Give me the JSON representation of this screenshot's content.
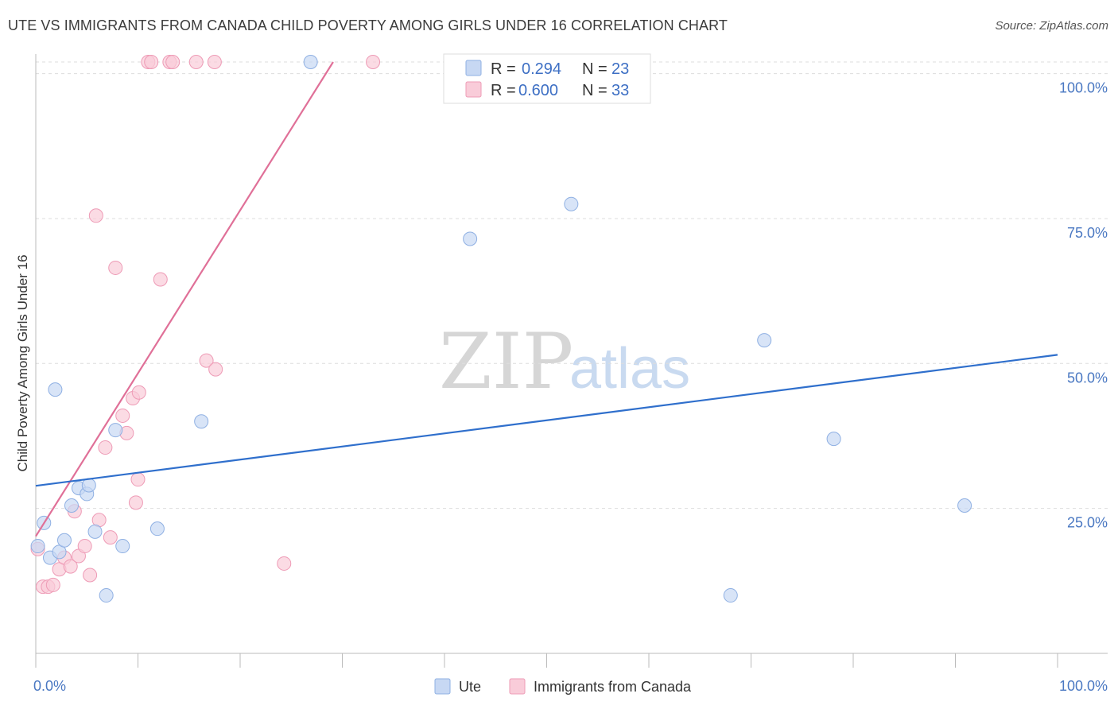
{
  "title": "UTE VS IMMIGRANTS FROM CANADA CHILD POVERTY AMONG GIRLS UNDER 16 CORRELATION CHART",
  "source": "Source: ZipAtlas.com",
  "watermark": {
    "zip": "ZIP",
    "atlas": "atlas"
  },
  "colors": {
    "ute_fill": "#c7d8f3",
    "ute_stroke": "#8fb0e3",
    "ute_line": "#2f6fcc",
    "canada_fill": "#f9ccd9",
    "canada_stroke": "#ee9bb6",
    "canada_line": "#e07098",
    "grid": "#dddddd",
    "axis": "#bbbbbb"
  },
  "legend": {
    "rows": [
      {
        "r_label": "R =",
        "r_value": "0.294",
        "n_label": "N =",
        "n_value": "23"
      },
      {
        "r_label": "R =",
        "r_value": "0.600",
        "n_label": "N =",
        "n_value": "33"
      }
    ]
  },
  "chart_data": {
    "type": "scatter",
    "title": "UTE VS IMMIGRANTS FROM CANADA CHILD POVERTY AMONG GIRLS UNDER 16 CORRELATION CHART",
    "xlabel": "",
    "ylabel": "Child Poverty Among Girls Under 16",
    "xlim": [
      0,
      100
    ],
    "ylim": [
      0,
      102
    ],
    "x_tick_labels": [
      "0.0%",
      "100.0%"
    ],
    "y_ticks": [
      25,
      50,
      75,
      100
    ],
    "y_tick_labels": [
      "25.0%",
      "50.0%",
      "75.0%",
      "100.0%"
    ],
    "grid": true,
    "legend_position": "bottom",
    "series": [
      {
        "name": "Ute",
        "points": [
          {
            "x": 0.2,
            "y": 18.5
          },
          {
            "x": 0.8,
            "y": 22.5
          },
          {
            "x": 1.4,
            "y": 16.5
          },
          {
            "x": 1.9,
            "y": 45.5
          },
          {
            "x": 2.3,
            "y": 17.5
          },
          {
            "x": 2.8,
            "y": 19.5
          },
          {
            "x": 3.5,
            "y": 25.5
          },
          {
            "x": 4.2,
            "y": 28.5
          },
          {
            "x": 5.0,
            "y": 27.5
          },
          {
            "x": 5.2,
            "y": 29.0
          },
          {
            "x": 5.8,
            "y": 21.0
          },
          {
            "x": 6.9,
            "y": 10.0
          },
          {
            "x": 7.8,
            "y": 38.5
          },
          {
            "x": 8.5,
            "y": 18.5
          },
          {
            "x": 11.9,
            "y": 21.5
          },
          {
            "x": 16.2,
            "y": 40.0
          },
          {
            "x": 26.9,
            "y": 102.0
          },
          {
            "x": 42.5,
            "y": 71.5
          },
          {
            "x": 52.4,
            "y": 77.5
          },
          {
            "x": 68.0,
            "y": 10.0
          },
          {
            "x": 71.3,
            "y": 54.0
          },
          {
            "x": 78.1,
            "y": 37.0
          },
          {
            "x": 90.9,
            "y": 25.5
          }
        ],
        "trend": {
          "x": [
            0,
            100
          ],
          "y": [
            28.9,
            51.5
          ]
        }
      },
      {
        "name": "Immigrants from Canada",
        "points": [
          {
            "x": 0.2,
            "y": 18.0
          },
          {
            "x": 0.7,
            "y": 11.5
          },
          {
            "x": 1.2,
            "y": 11.5
          },
          {
            "x": 1.7,
            "y": 11.8
          },
          {
            "x": 2.3,
            "y": 14.5
          },
          {
            "x": 2.8,
            "y": 16.5
          },
          {
            "x": 3.4,
            "y": 15.0
          },
          {
            "x": 3.8,
            "y": 24.5
          },
          {
            "x": 4.2,
            "y": 16.8
          },
          {
            "x": 4.8,
            "y": 18.5
          },
          {
            "x": 5.3,
            "y": 13.5
          },
          {
            "x": 5.9,
            "y": 75.5
          },
          {
            "x": 6.2,
            "y": 23.0
          },
          {
            "x": 6.8,
            "y": 35.5
          },
          {
            "x": 7.3,
            "y": 20.0
          },
          {
            "x": 7.8,
            "y": 66.5
          },
          {
            "x": 8.5,
            "y": 41.0
          },
          {
            "x": 8.9,
            "y": 38.0
          },
          {
            "x": 9.5,
            "y": 44.0
          },
          {
            "x": 9.8,
            "y": 26.0
          },
          {
            "x": 10.0,
            "y": 30.0
          },
          {
            "x": 10.1,
            "y": 45.0
          },
          {
            "x": 11.0,
            "y": 102.0
          },
          {
            "x": 11.3,
            "y": 102.0
          },
          {
            "x": 12.2,
            "y": 64.5
          },
          {
            "x": 13.1,
            "y": 102.0
          },
          {
            "x": 13.4,
            "y": 102.0
          },
          {
            "x": 15.7,
            "y": 102.0
          },
          {
            "x": 16.7,
            "y": 50.5
          },
          {
            "x": 17.5,
            "y": 102.0
          },
          {
            "x": 17.6,
            "y": 49.0
          },
          {
            "x": 24.3,
            "y": 15.5
          },
          {
            "x": 33.0,
            "y": 102.0
          }
        ],
        "trend": {
          "x": [
            0,
            29.1
          ],
          "y": [
            20.2,
            102.0
          ]
        }
      }
    ]
  }
}
